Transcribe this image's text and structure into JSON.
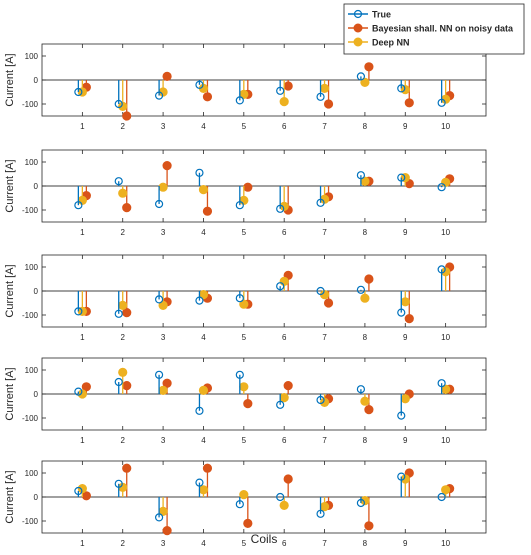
{
  "figure": {
    "xlabel": "Coils",
    "legend_placement": "top-right",
    "colors": {
      "axis": "#262626",
      "text": "#262626",
      "grid": "#ffffff"
    }
  },
  "legend": [
    {
      "label": "True",
      "color": "#0072BD",
      "marker": "open-circle"
    },
    {
      "label": "Bayesian shall. NN on noisy data",
      "color": "#D95319",
      "marker": "filled-circle"
    },
    {
      "label": "Deep NN",
      "color": "#EDB120",
      "marker": "filled-circle"
    }
  ],
  "chart_data": [
    {
      "type": "stem",
      "ylabel": "Current [A]",
      "ylim": [
        -150,
        150
      ],
      "yticks": [
        -100,
        0,
        100
      ],
      "categories": [
        "1",
        "2",
        "3",
        "4",
        "5",
        "6",
        "7",
        "8",
        "9",
        "10"
      ],
      "series": [
        {
          "name": "True",
          "values": [
            -50,
            -100,
            -65,
            -20,
            -85,
            -45,
            -70,
            15,
            -35,
            -95
          ]
        },
        {
          "name": "Bayesian shall. NN on noisy data",
          "values": [
            -30,
            -150,
            15,
            -70,
            -60,
            -25,
            -100,
            55,
            -95,
            -65
          ]
        },
        {
          "name": "Deep NN",
          "values": [
            -50,
            -110,
            -50,
            -35,
            -60,
            -90,
            -35,
            -10,
            -40,
            -80
          ]
        }
      ]
    },
    {
      "type": "stem",
      "ylabel": "Current [A]",
      "ylim": [
        -150,
        150
      ],
      "yticks": [
        -100,
        0,
        100
      ],
      "categories": [
        "1",
        "2",
        "3",
        "4",
        "5",
        "6",
        "7",
        "8",
        "9",
        "10"
      ],
      "series": [
        {
          "name": "True",
          "values": [
            -80,
            20,
            -75,
            55,
            -80,
            -95,
            -70,
            45,
            35,
            -5
          ]
        },
        {
          "name": "Bayesian shall. NN on noisy data",
          "values": [
            -40,
            -90,
            85,
            -105,
            -5,
            -100,
            -45,
            20,
            10,
            30
          ]
        },
        {
          "name": "Deep NN",
          "values": [
            -60,
            -30,
            -5,
            -15,
            -60,
            -85,
            -55,
            20,
            35,
            15
          ]
        }
      ]
    },
    {
      "type": "stem",
      "ylabel": "Current [A]",
      "ylim": [
        -150,
        150
      ],
      "yticks": [
        -100,
        0,
        100
      ],
      "categories": [
        "1",
        "2",
        "3",
        "4",
        "5",
        "6",
        "7",
        "8",
        "9",
        "10"
      ],
      "series": [
        {
          "name": "True",
          "values": [
            -85,
            -95,
            -35,
            -40,
            -30,
            20,
            0,
            5,
            -90,
            90
          ]
        },
        {
          "name": "Bayesian shall. NN on noisy data",
          "values": [
            -85,
            -90,
            -45,
            -30,
            -55,
            65,
            -50,
            50,
            -115,
            100
          ]
        },
        {
          "name": "Deep NN",
          "values": [
            -85,
            -60,
            -60,
            -15,
            -55,
            40,
            -15,
            -30,
            -45,
            80
          ]
        }
      ]
    },
    {
      "type": "stem",
      "ylabel": "Current [A]",
      "ylim": [
        -150,
        150
      ],
      "yticks": [
        -100,
        0,
        100
      ],
      "categories": [
        "1",
        "2",
        "3",
        "4",
        "5",
        "6",
        "7",
        "8",
        "9",
        "10"
      ],
      "series": [
        {
          "name": "True",
          "values": [
            10,
            50,
            80,
            -70,
            80,
            -45,
            -25,
            20,
            -90,
            45
          ]
        },
        {
          "name": "Bayesian shall. NN on noisy data",
          "values": [
            30,
            35,
            45,
            25,
            -40,
            35,
            -20,
            -65,
            0,
            20
          ]
        },
        {
          "name": "Deep NN",
          "values": [
            0,
            90,
            15,
            15,
            30,
            -15,
            -35,
            -30,
            -20,
            20
          ]
        }
      ]
    },
    {
      "type": "stem",
      "ylabel": "Current [A]",
      "ylim": [
        -150,
        150
      ],
      "yticks": [
        -100,
        0,
        100
      ],
      "categories": [
        "1",
        "2",
        "3",
        "4",
        "5",
        "6",
        "7",
        "8",
        "9",
        "10"
      ],
      "series": [
        {
          "name": "True",
          "values": [
            25,
            55,
            -85,
            60,
            -30,
            0,
            -70,
            -25,
            85,
            0
          ]
        },
        {
          "name": "Bayesian shall. NN on noisy data",
          "values": [
            5,
            120,
            -140,
            120,
            -110,
            75,
            -35,
            -120,
            100,
            35
          ]
        },
        {
          "name": "Deep NN",
          "values": [
            35,
            40,
            -60,
            30,
            10,
            -35,
            -40,
            -15,
            75,
            30
          ]
        }
      ]
    }
  ]
}
